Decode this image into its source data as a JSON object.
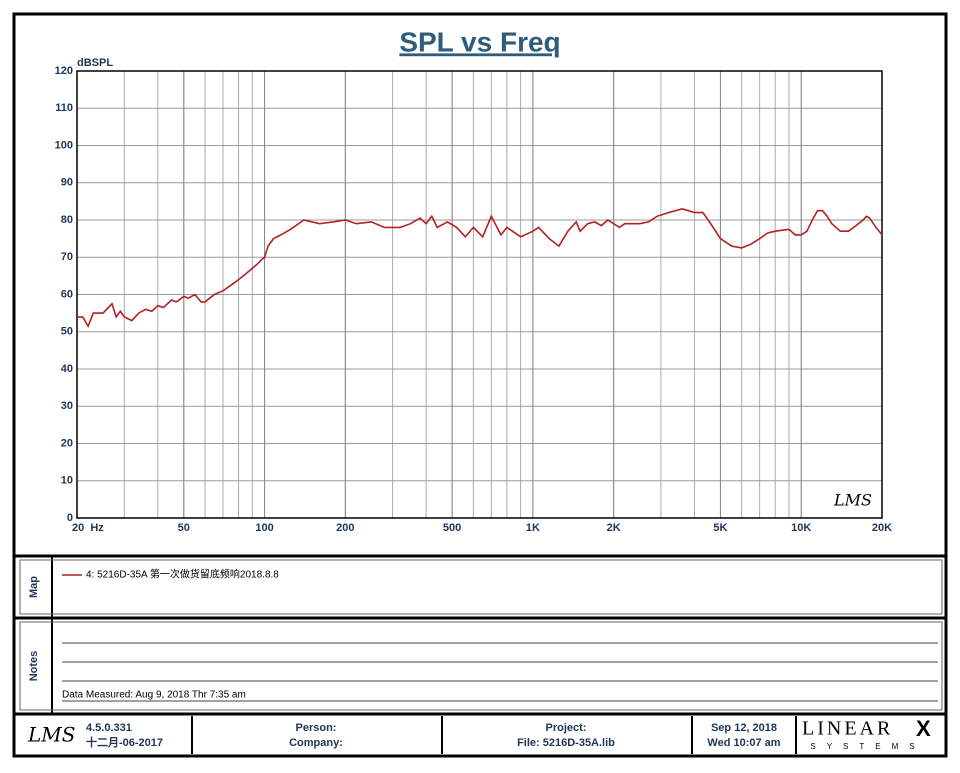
{
  "chart_data": {
    "type": "line",
    "title": "SPL vs Freq",
    "y_label": "dBSPL",
    "watermark": "LMS",
    "xscale": "log",
    "grid": true,
    "xlim": [
      20,
      20000
    ],
    "xticks": [
      {
        "value": 20,
        "label": "20  Hz"
      },
      50,
      100,
      200,
      500,
      {
        "value": 1000,
        "label": "1K"
      },
      {
        "value": 2000,
        "label": "2K"
      },
      {
        "value": 5000,
        "label": "5K"
      },
      {
        "value": 10000,
        "label": "10K"
      },
      {
        "value": 20000,
        "label": "20K"
      }
    ],
    "ylim": [
      0,
      120
    ],
    "yticks": [
      0,
      10,
      20,
      30,
      40,
      50,
      60,
      70,
      80,
      90,
      100,
      110,
      120
    ],
    "series": [
      {
        "name": "4: 5216D-35A 第一次做货留底频响2018.8.8",
        "color": "#b22222",
        "x": [
          20,
          21,
          22,
          23,
          25,
          27,
          28,
          29,
          30,
          32,
          34,
          36,
          38,
          40,
          42,
          45,
          47,
          50,
          52,
          55,
          58,
          60,
          65,
          70,
          75,
          80,
          85,
          90,
          95,
          98,
          100,
          103,
          108,
          115,
          125,
          140,
          160,
          180,
          200,
          220,
          250,
          280,
          320,
          350,
          380,
          400,
          420,
          440,
          480,
          520,
          560,
          600,
          650,
          700,
          760,
          800,
          900,
          1000,
          1050,
          1150,
          1250,
          1350,
          1450,
          1500,
          1600,
          1700,
          1800,
          1900,
          2000,
          2100,
          2200,
          2500,
          2700,
          2900,
          3200,
          3600,
          3800,
          4000,
          4300,
          4600,
          5000,
          5500,
          6000,
          6500,
          7000,
          7500,
          8000,
          9000,
          9500,
          10000,
          10500,
          11000,
          11500,
          12000,
          12500,
          13000,
          14000,
          15000,
          16000,
          17000,
          17500,
          18000,
          19000,
          20000
        ],
        "values": [
          54,
          54,
          51.5,
          55,
          55,
          57.5,
          54,
          55.5,
          54,
          53,
          55,
          56,
          55.5,
          57,
          56.5,
          58.5,
          58,
          59.5,
          59,
          60,
          58,
          58,
          60,
          61,
          62.5,
          64,
          65.5,
          67,
          68.5,
          69.5,
          70,
          73,
          75,
          76,
          77.5,
          80,
          79,
          79.5,
          80,
          79,
          79.5,
          78,
          78,
          79,
          80.5,
          79,
          81,
          78,
          79.5,
          78,
          75.5,
          78,
          75.5,
          81,
          76,
          78,
          75.5,
          77,
          78,
          75,
          73,
          77,
          79.5,
          77,
          79,
          79.5,
          78.5,
          80,
          79,
          78,
          79,
          79,
          79.5,
          81,
          82,
          83,
          82.5,
          82,
          82,
          79,
          75,
          73,
          72.5,
          73.5,
          75,
          76.5,
          77,
          77.5,
          76,
          76,
          77,
          80,
          82.5,
          82.5,
          81,
          79,
          77,
          77,
          78.5,
          80,
          81,
          80.5,
          78,
          76
        ]
      }
    ]
  },
  "map": {
    "label": "Map"
  },
  "notes": {
    "label": "Notes",
    "measured": "Data Measured: Aug  9, 2018  Thr  7:35 am"
  },
  "footer": {
    "logo": "LMS",
    "version": "4.5.0.331",
    "build_date": "十二月-06-2017",
    "person": "Person:",
    "company": "Company:",
    "project": "Project:",
    "file": "File: 5216D-35A.lib",
    "date": "Sep 12, 2018",
    "time": "Wed 10:07 am",
    "brand": "LINEAR",
    "brand_x": "X",
    "brand_sub": "SYSTEMS"
  }
}
